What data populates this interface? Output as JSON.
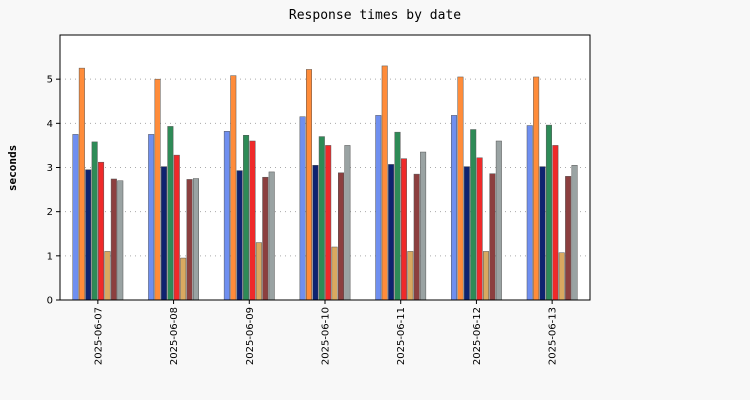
{
  "chart_data": {
    "type": "bar",
    "title": "Response times by date",
    "xlabel": "",
    "ylabel": "seconds",
    "ylim": [
      0,
      6
    ],
    "yticks": [
      0,
      1,
      2,
      3,
      4,
      5
    ],
    "grid": "horizontal-dotted",
    "legend": "none",
    "categories": [
      "2025-06-07",
      "2025-06-08",
      "2025-06-09",
      "2025-06-10",
      "2025-06-11",
      "2025-06-12",
      "2025-06-13"
    ],
    "series": [
      {
        "color": "#6f8ff0",
        "values": [
          3.75,
          3.75,
          3.82,
          4.15,
          4.18,
          4.18,
          3.95
        ]
      },
      {
        "color": "#ff8c3a",
        "values": [
          5.25,
          5.0,
          5.08,
          5.22,
          5.3,
          5.05,
          5.05
        ]
      },
      {
        "color": "#0e2370",
        "values": [
          2.95,
          3.02,
          2.93,
          3.05,
          3.07,
          3.02,
          3.02
        ]
      },
      {
        "color": "#2e8b57",
        "values": [
          3.58,
          3.93,
          3.73,
          3.7,
          3.8,
          3.86,
          3.96
        ]
      },
      {
        "color": "#ef2a2a",
        "values": [
          3.12,
          3.28,
          3.6,
          3.5,
          3.2,
          3.22,
          3.5
        ]
      },
      {
        "color": "#d9a860",
        "values": [
          1.1,
          0.95,
          1.3,
          1.2,
          1.1,
          1.1,
          1.07
        ]
      },
      {
        "color": "#8c3f3f",
        "values": [
          2.74,
          2.73,
          2.78,
          2.88,
          2.85,
          2.86,
          2.8
        ]
      },
      {
        "color": "#9aa3a3",
        "values": [
          2.7,
          2.75,
          2.9,
          3.5,
          3.35,
          3.6,
          3.05
        ]
      }
    ]
  }
}
